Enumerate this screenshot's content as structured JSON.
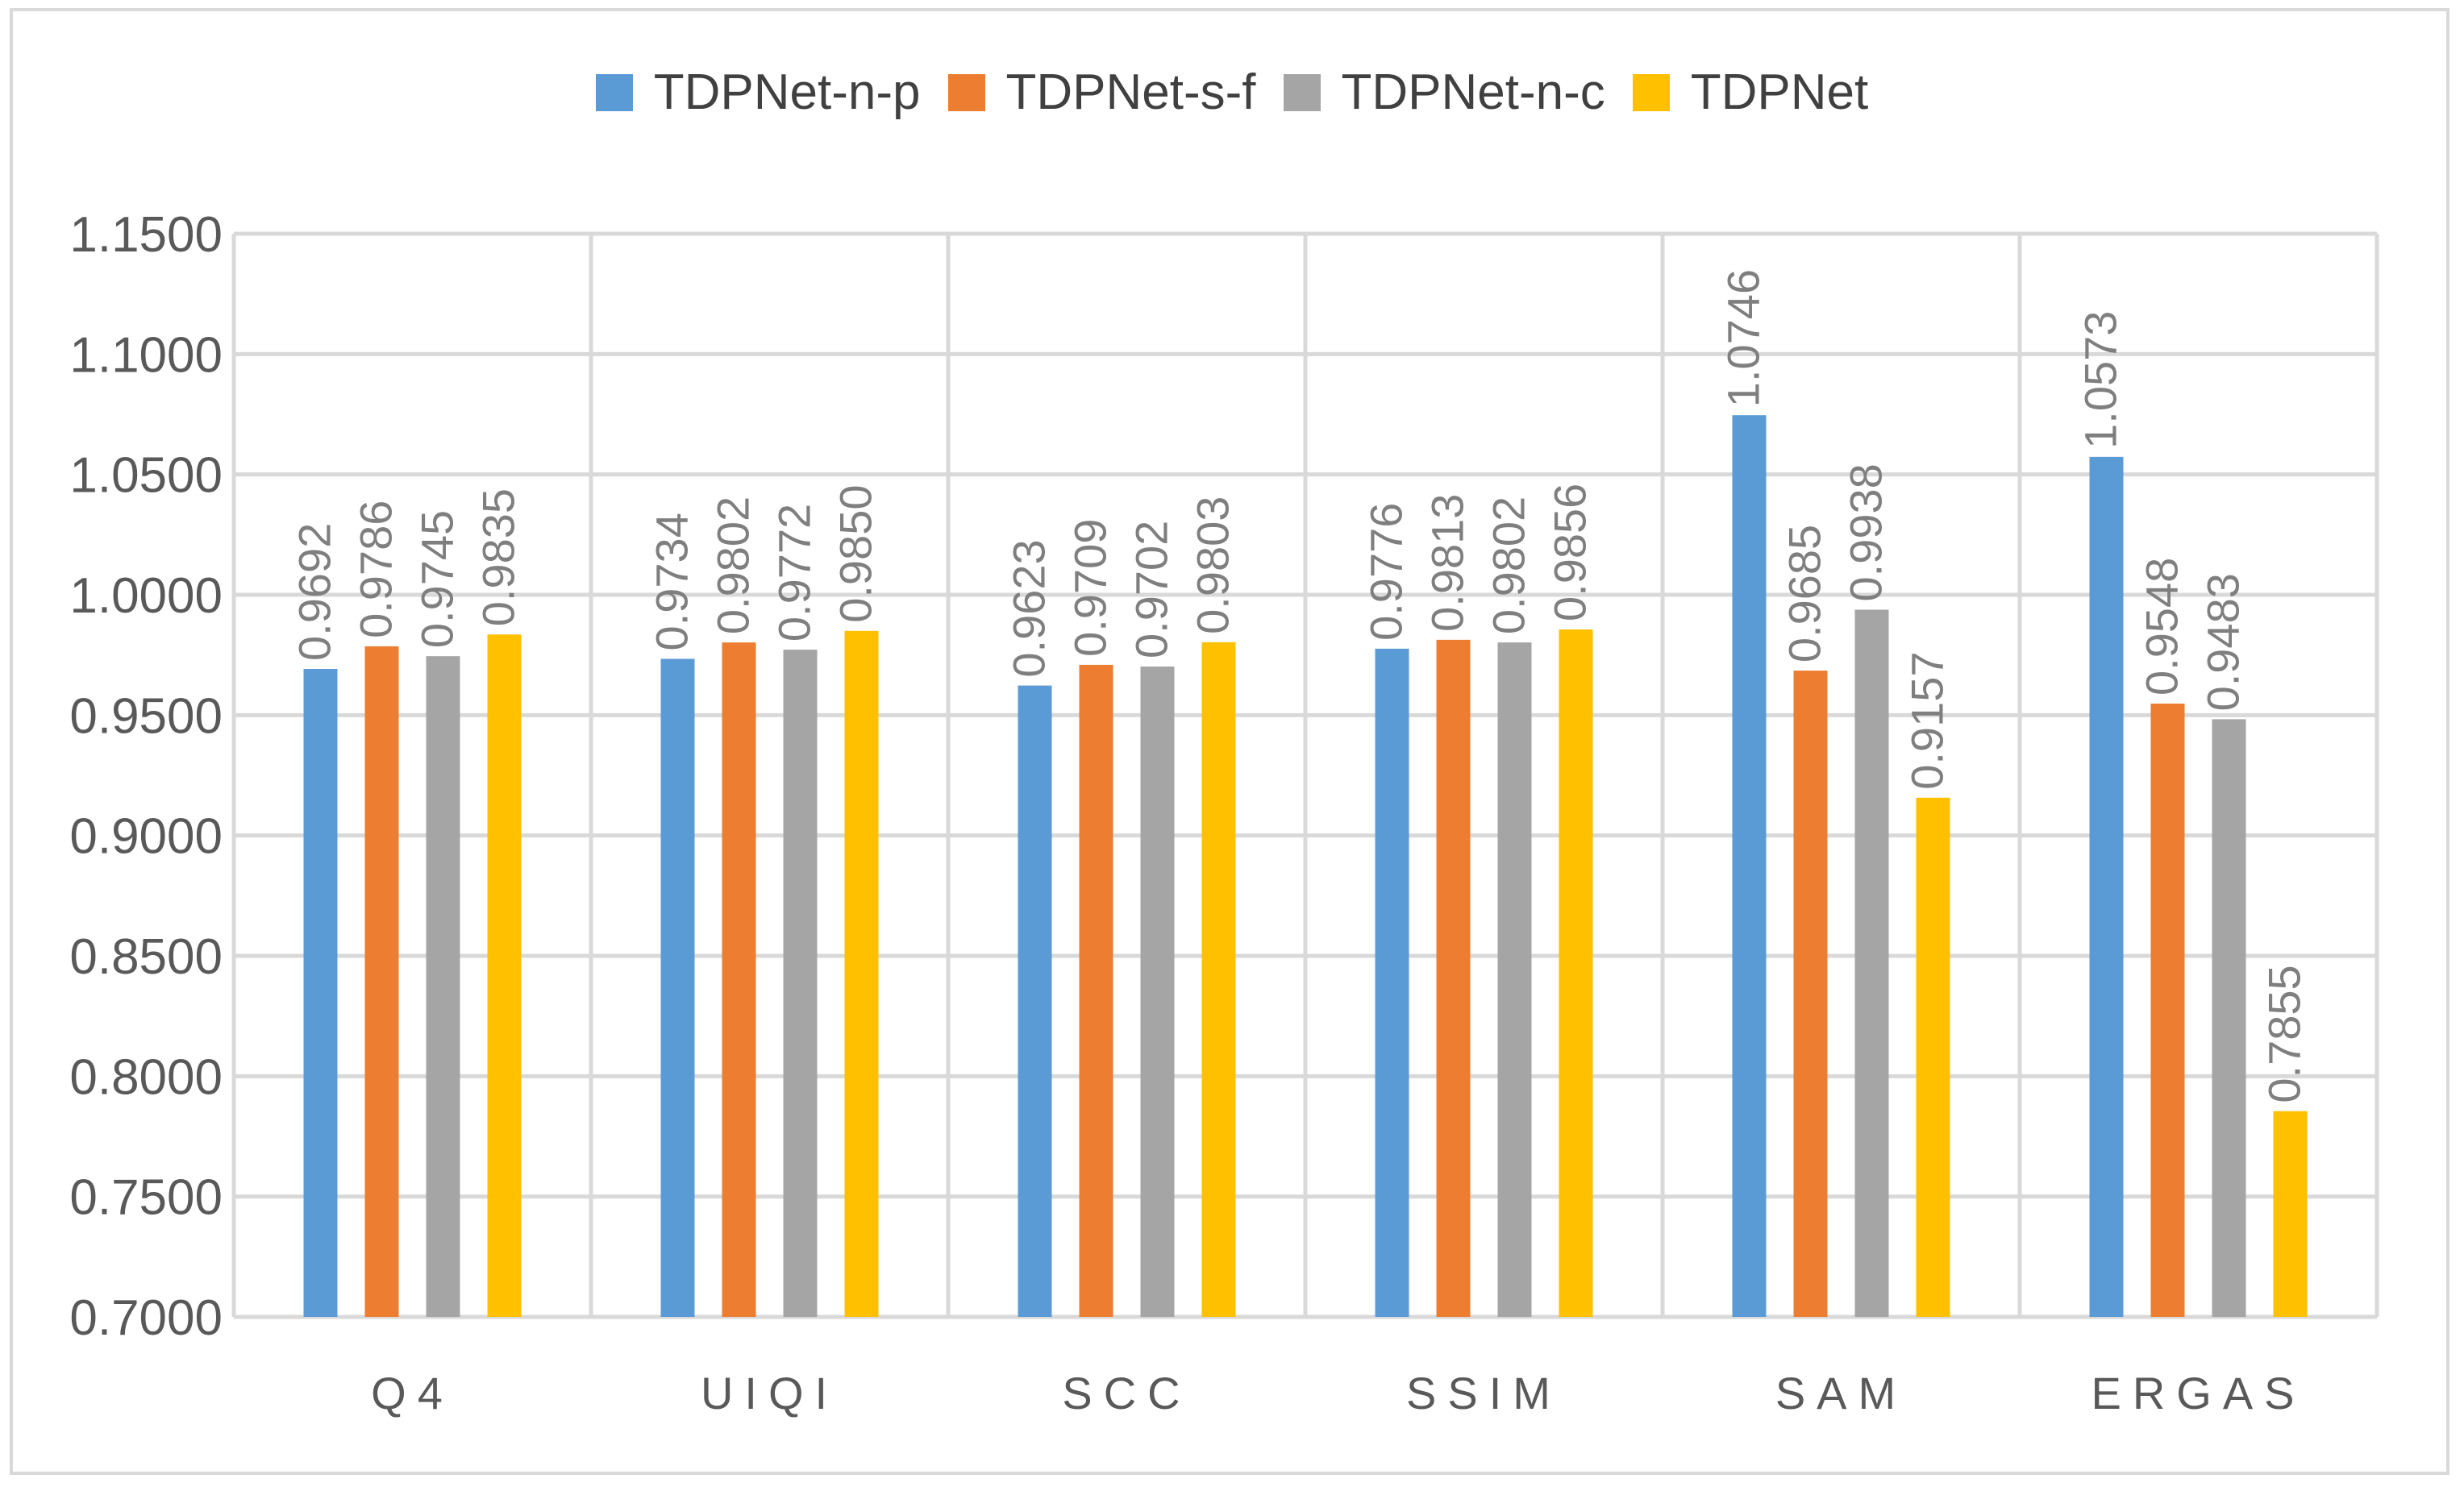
{
  "chart_data": {
    "type": "bar",
    "title": "",
    "xlabel": "",
    "ylabel": "",
    "categories": [
      "Q4",
      "UIQI",
      "SCC",
      "SSIM",
      "SAM",
      "ERGAS"
    ],
    "series": [
      {
        "name": "TDPNet-n-p",
        "color": "#5b9bd5",
        "values": [
          0.9692,
          0.9734,
          0.9623,
          0.9776,
          1.0746,
          1.0573
        ],
        "labels": [
          "0.9692",
          "0.9734",
          "0.9623",
          "0.9776",
          "1.0746",
          "1.0573"
        ]
      },
      {
        "name": "TDPNet-s-f",
        "color": "#ed7d31",
        "values": [
          0.9786,
          0.9802,
          0.9709,
          0.9813,
          0.9685,
          0.9548
        ],
        "labels": [
          "0.9786",
          "0.9802",
          "0.9709",
          "0.9813",
          "0.9685",
          "0.9548"
        ]
      },
      {
        "name": "TDPNet-n-c",
        "color": "#a5a5a5",
        "values": [
          0.9745,
          0.9772,
          0.9702,
          0.9802,
          0.9938,
          0.9483
        ],
        "labels": [
          "0.9745",
          "0.9772",
          "0.9702",
          "0.9802",
          "0.9938",
          "0.9483"
        ]
      },
      {
        "name": "TDPNet",
        "color": "#ffc000",
        "values": [
          0.9835,
          0.985,
          0.9803,
          0.9856,
          0.9157,
          0.7855
        ],
        "labels": [
          "0.9835",
          "0.9850",
          "0.9803",
          "0.9856",
          "0.9157",
          "0.7855"
        ]
      }
    ],
    "ylim": [
      0.7,
      1.15
    ],
    "yticks": [
      "0.7000",
      "0.7500",
      "0.8000",
      "0.8500",
      "0.9000",
      "0.9500",
      "1.0000",
      "1.0500",
      "1.1000",
      "1.1500"
    ],
    "grid": true,
    "legend_position": "top-center",
    "colors": {
      "grid": "#d9d9d9",
      "axis_text": "#595959",
      "label_text": "#7f7f7f"
    }
  }
}
